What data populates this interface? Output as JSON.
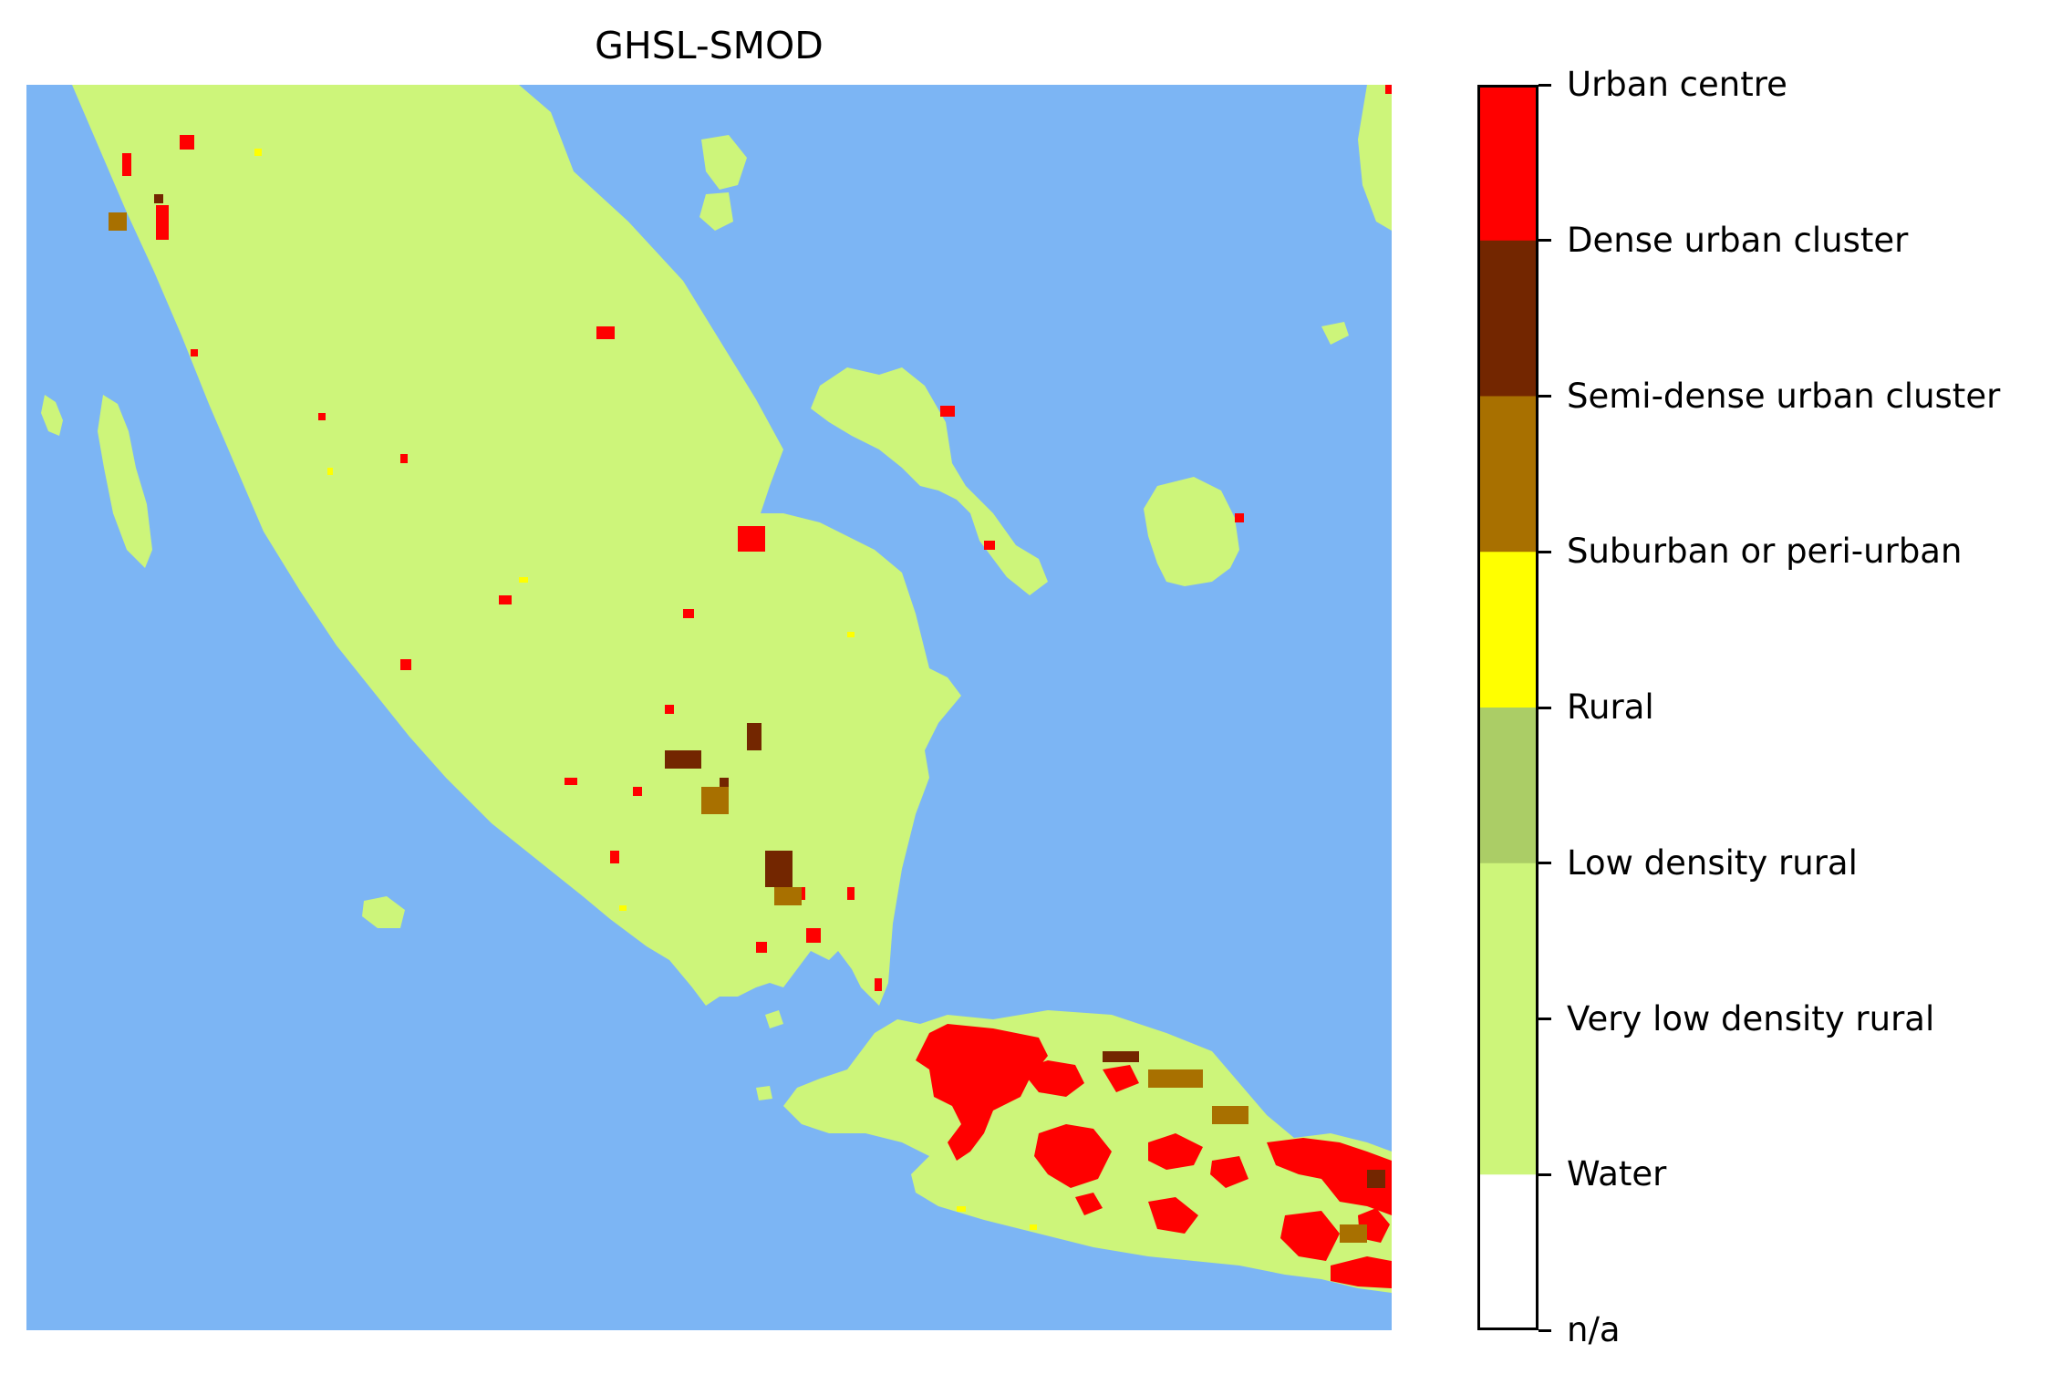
{
  "map": {
    "title": "GHSL-SMOD",
    "colors": {
      "water": "#7cb5f4",
      "very_low_density_rural": "#cdf57a",
      "rural": "#abcd66",
      "suburban": "#ffff00",
      "semi_dense": "#a87000",
      "dense": "#732600",
      "urban_centre": "#ff0000"
    }
  },
  "legend": {
    "classes": [
      {
        "label": "Urban centre",
        "color": "#ff0000"
      },
      {
        "label": "Dense urban cluster",
        "color": "#732600"
      },
      {
        "label": "Semi-dense urban cluster",
        "color": "#a87000"
      },
      {
        "label": "Suburban or peri-urban",
        "color": "#ffff00"
      },
      {
        "label": "Rural",
        "color": "#abcd66"
      },
      {
        "label": "Low density rural",
        "color": "#cdf57a"
      },
      {
        "label": "Very low density rural",
        "color": "#cdf57a"
      },
      {
        "label": "Water",
        "color": "#7cb5f4"
      },
      {
        "label": "n/a",
        "color": "#ffffff"
      }
    ]
  }
}
